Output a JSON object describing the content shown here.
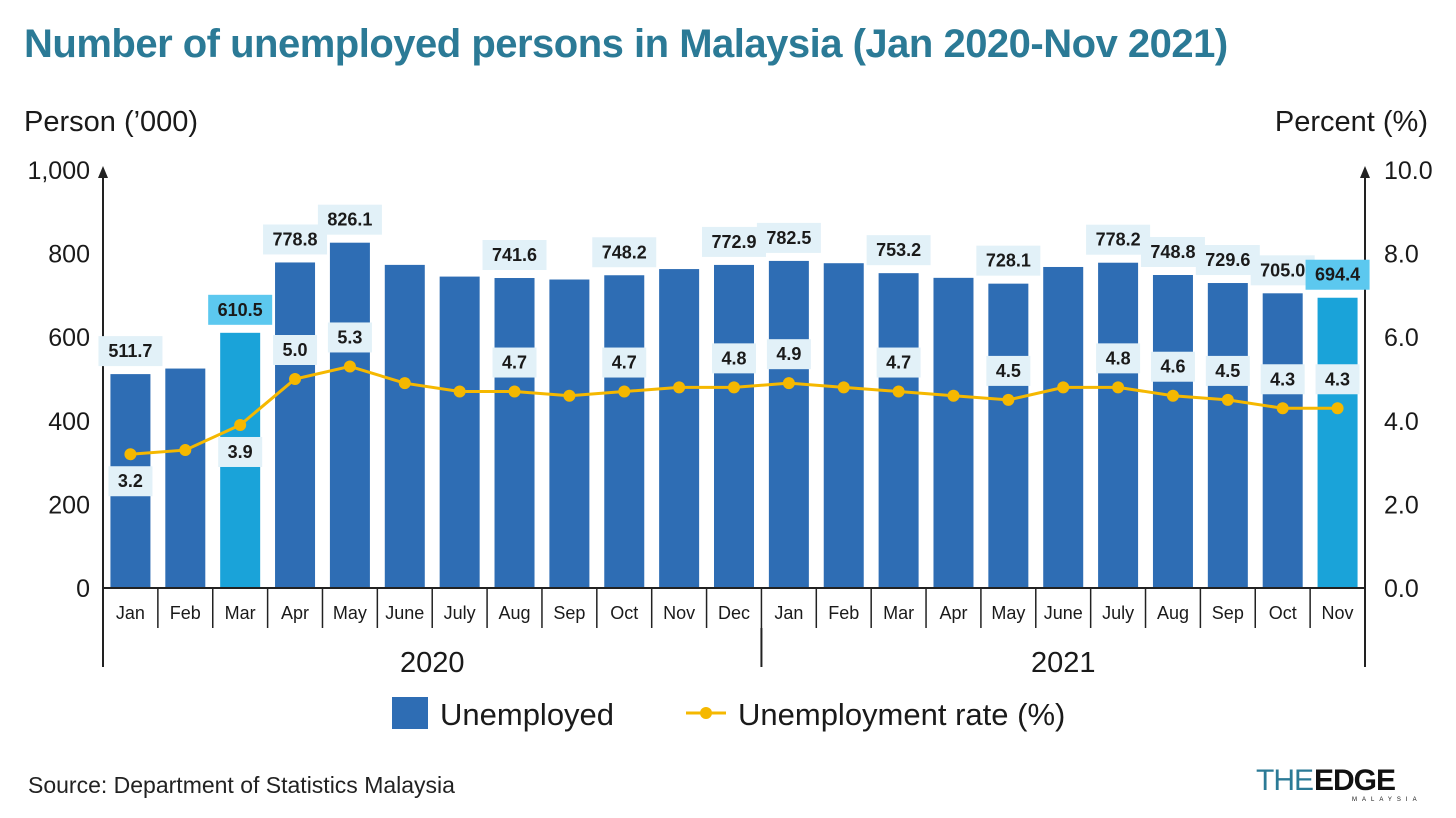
{
  "title": "Number of unemployed persons in Malaysia (Jan 2020-Nov 2021)",
  "source": "Source: Department of Statistics Malaysia",
  "logo": "THEEDGE MALAYSIA",
  "chart_data": {
    "type": "bar",
    "categories": [
      "Jan",
      "Feb",
      "Mar",
      "Apr",
      "May",
      "June",
      "July",
      "Aug",
      "Sep",
      "Oct",
      "Nov",
      "Dec",
      "Jan",
      "Feb",
      "Mar",
      "Apr",
      "May",
      "June",
      "July",
      "Aug",
      "Sep",
      "Oct",
      "Nov"
    ],
    "groups": [
      {
        "label": "2020",
        "count": 12
      },
      {
        "label": "2021",
        "count": 11
      }
    ],
    "y_left": {
      "label": "Person (’000)",
      "ylim": [
        0,
        1000
      ],
      "ticks": [
        "1,000",
        "800",
        "600",
        "400",
        "200",
        "0"
      ]
    },
    "y_right": {
      "label": "Percent (%)",
      "ylim": [
        0,
        10
      ],
      "ticks": [
        "10.0",
        "8.0",
        "6.0",
        "4.0",
        "2.0",
        "0.0"
      ]
    },
    "series": [
      {
        "name": "Unemployed",
        "kind": "bar",
        "axis": "left",
        "color": "#2e6db4",
        "highlight_color": "#1aa3d9",
        "highlight": [
          2,
          22
        ],
        "values": [
          511.7,
          525,
          610.5,
          778.8,
          826.1,
          773,
          745,
          741.6,
          738,
          748.2,
          763,
          772.9,
          782.5,
          777,
          753.2,
          742,
          728.1,
          768,
          778.2,
          748.8,
          729.6,
          705.0,
          694.4
        ],
        "labels": [
          "511.7",
          "",
          "610.5",
          "778.8",
          "826.1",
          "",
          "",
          "741.6",
          "",
          "748.2",
          "",
          "772.9",
          "782.5",
          "",
          "753.2",
          "",
          "728.1",
          "",
          "778.2",
          "748.8",
          "729.6",
          "705.0",
          "694.4"
        ]
      },
      {
        "name": "Unemployment rate (%)",
        "kind": "line",
        "axis": "right",
        "color": "#f5b800",
        "values": [
          3.2,
          3.3,
          3.9,
          5.0,
          5.3,
          4.9,
          4.7,
          4.7,
          4.6,
          4.7,
          4.8,
          4.8,
          4.9,
          4.8,
          4.7,
          4.6,
          4.5,
          4.8,
          4.8,
          4.6,
          4.5,
          4.3,
          4.3
        ],
        "labels": [
          "3.2",
          "",
          "3.9",
          "5.0",
          "5.3",
          "",
          "",
          "4.7",
          "",
          "4.7",
          "",
          "4.8",
          "4.9",
          "",
          "4.7",
          "",
          "4.5",
          "",
          "4.8",
          "4.6",
          "4.5",
          "4.3",
          "4.3"
        ]
      }
    ],
    "legend_position": "bottom",
    "grid": false
  }
}
